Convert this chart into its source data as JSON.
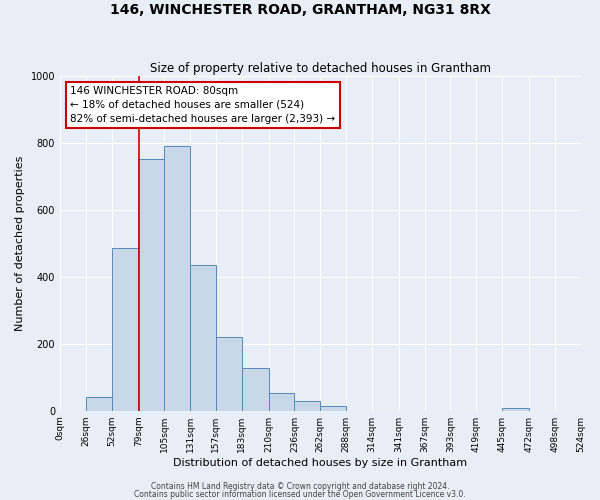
{
  "title": "146, WINCHESTER ROAD, GRANTHAM, NG31 8RX",
  "subtitle": "Size of property relative to detached houses in Grantham",
  "xlabel": "Distribution of detached houses by size in Grantham",
  "ylabel": "Number of detached properties",
  "bin_edges": [
    0,
    26,
    52,
    79,
    105,
    131,
    157,
    183,
    210,
    236,
    262,
    288,
    314,
    341,
    367,
    393,
    419,
    445,
    472,
    498,
    524
  ],
  "bar_heights": [
    0,
    42,
    485,
    750,
    790,
    435,
    220,
    128,
    52,
    28,
    15,
    0,
    0,
    0,
    0,
    0,
    0,
    8,
    0,
    0
  ],
  "bar_color": "#c8d8e8",
  "bar_edge_color": "#5588bb",
  "property_value": 80,
  "vline_color": "#cc0000",
  "ylim": [
    0,
    1000
  ],
  "annotation_title": "146 WINCHESTER ROAD: 80sqm",
  "annotation_line1": "← 18% of detached houses are smaller (524)",
  "annotation_line2": "82% of semi-detached houses are larger (2,393) →",
  "annotation_box_color": "#ffffff",
  "annotation_box_edge": "#cc0000",
  "background_color": "#e8eef5",
  "grid_color": "#ffffff",
  "footer1": "Contains HM Land Registry data © Crown copyright and database right 2024.",
  "footer2": "Contains public sector information licensed under the Open Government Licence v3.0.",
  "tick_labels": [
    "0sqm",
    "26sqm",
    "52sqm",
    "79sqm",
    "105sqm",
    "131sqm",
    "157sqm",
    "183sqm",
    "210sqm",
    "236sqm",
    "262sqm",
    "288sqm",
    "314sqm",
    "341sqm",
    "367sqm",
    "393sqm",
    "419sqm",
    "445sqm",
    "472sqm",
    "498sqm",
    "524sqm"
  ],
  "title_fontsize": 10,
  "subtitle_fontsize": 8.5,
  "axis_label_fontsize": 8,
  "tick_fontsize": 6.5,
  "annotation_fontsize": 7.5,
  "footer_fontsize": 5.5
}
